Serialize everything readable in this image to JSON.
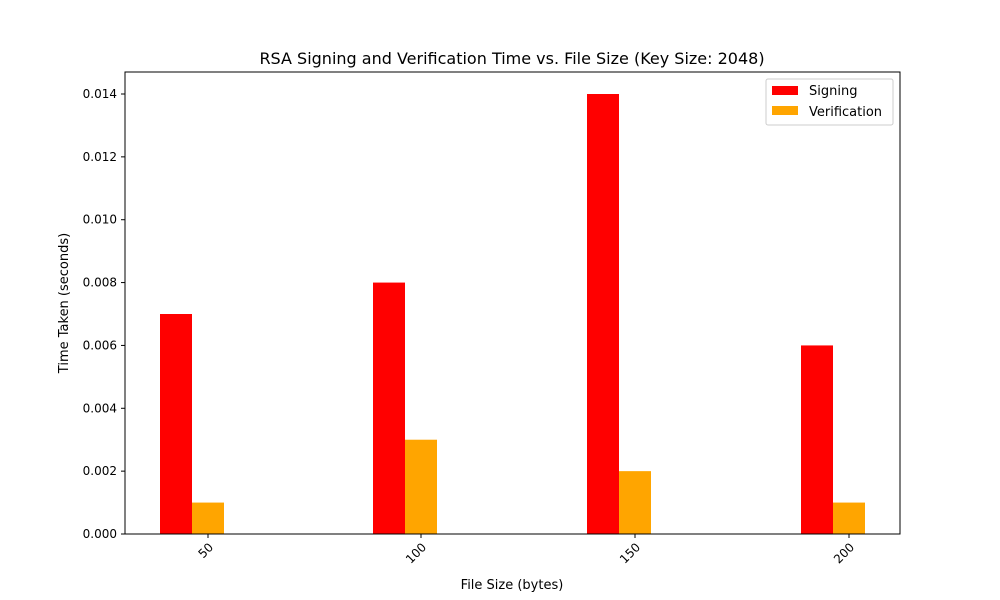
{
  "chart_data": {
    "type": "bar",
    "title": "RSA Signing and Verification Time vs. File Size (Key Size: 2048)",
    "xlabel": "File Size (bytes)",
    "ylabel": "Time Taken (seconds)",
    "categories": [
      "50",
      "100",
      "150",
      "200"
    ],
    "series": [
      {
        "name": "Signing",
        "values": [
          0.007,
          0.008,
          0.014,
          0.006
        ],
        "color": "#ff0000"
      },
      {
        "name": "Verification",
        "values": [
          0.001,
          0.003,
          0.002,
          0.001
        ],
        "color": "#ffa500"
      }
    ],
    "ylim": [
      0,
      0.0147
    ],
    "yticks": [
      "0.000",
      "0.002",
      "0.004",
      "0.006",
      "0.008",
      "0.010",
      "0.012",
      "0.014"
    ],
    "xtick_rotation": 45,
    "grid": false,
    "legend_position": "top-right"
  }
}
